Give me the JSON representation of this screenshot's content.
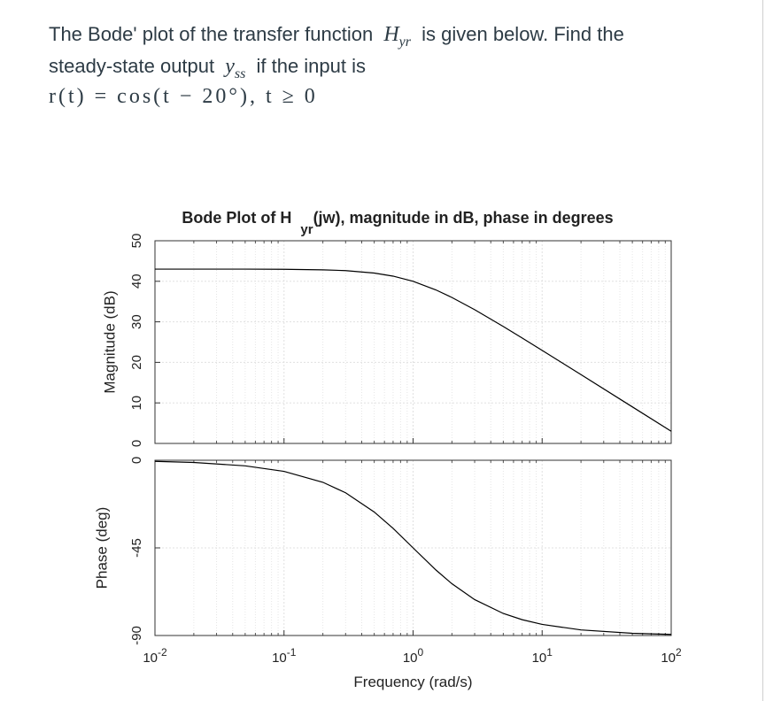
{
  "question": {
    "line1_text": "The Bode' plot of the transfer function",
    "line1_math": "H",
    "line1_math_sub": "yr",
    "line1_rest": "is given below. Find the",
    "line2_text": "steady-state output",
    "line2_math": "y",
    "line2_math_sub": "ss",
    "line2_rest": "if the input is",
    "line3_math": "r(t) = cos(t − 20°), t ≥ 0"
  },
  "chart_data": [
    {
      "type": "line",
      "title": "Bode Plot of H",
      "title_subscript": "yr",
      "title_rest": "(jw), magnitude in dB, phase in degrees",
      "y_label": "Magnitude (dB)",
      "log_x": true,
      "grid": true,
      "x": [
        0.01,
        0.02,
        0.05,
        0.1,
        0.2,
        0.3,
        0.5,
        0.7,
        1,
        1.5,
        2,
        3,
        5,
        7,
        10,
        20,
        50,
        100
      ],
      "series": [
        {
          "name": "Magnitude",
          "color": "#000000",
          "values": [
            43.0,
            43.0,
            43.0,
            42.96,
            42.83,
            42.63,
            42.03,
            41.27,
            40.0,
            37.88,
            36.0,
            33.0,
            28.85,
            26.01,
            22.96,
            16.97,
            9.02,
            3.0
          ]
        }
      ],
      "xlim": [
        0.01,
        100
      ],
      "xticks": [
        0.01,
        0.1,
        1,
        10,
        100
      ],
      "ylim": [
        0,
        50
      ],
      "yticks": [
        0,
        10,
        20,
        30,
        40,
        50
      ]
    },
    {
      "type": "line",
      "y_label": "Phase (deg)",
      "x_label": "Frequency (rad/s)",
      "log_x": true,
      "grid": true,
      "x": [
        0.01,
        0.02,
        0.05,
        0.1,
        0.2,
        0.3,
        0.5,
        0.7,
        1,
        1.5,
        2,
        3,
        5,
        7,
        10,
        20,
        50,
        100
      ],
      "series": [
        {
          "name": "Phase",
          "color": "#000000",
          "values": [
            -0.57,
            -1.15,
            -2.86,
            -5.71,
            -11.31,
            -16.7,
            -26.57,
            -34.99,
            -45.0,
            -56.31,
            -63.43,
            -71.57,
            -78.69,
            -81.87,
            -84.29,
            -87.14,
            -88.85,
            -89.43
          ]
        }
      ],
      "xlim": [
        0.01,
        100
      ],
      "xticks": [
        {
          "value": 0.01,
          "label": "10-2"
        },
        {
          "value": 0.1,
          "label": "10-1"
        },
        {
          "value": 1,
          "label": "100"
        },
        {
          "value": 10,
          "label": "101"
        },
        {
          "value": 100,
          "label": "102"
        }
      ],
      "ylim": [
        -90,
        0
      ],
      "yticks": [
        -90,
        -45,
        0
      ]
    }
  ]
}
